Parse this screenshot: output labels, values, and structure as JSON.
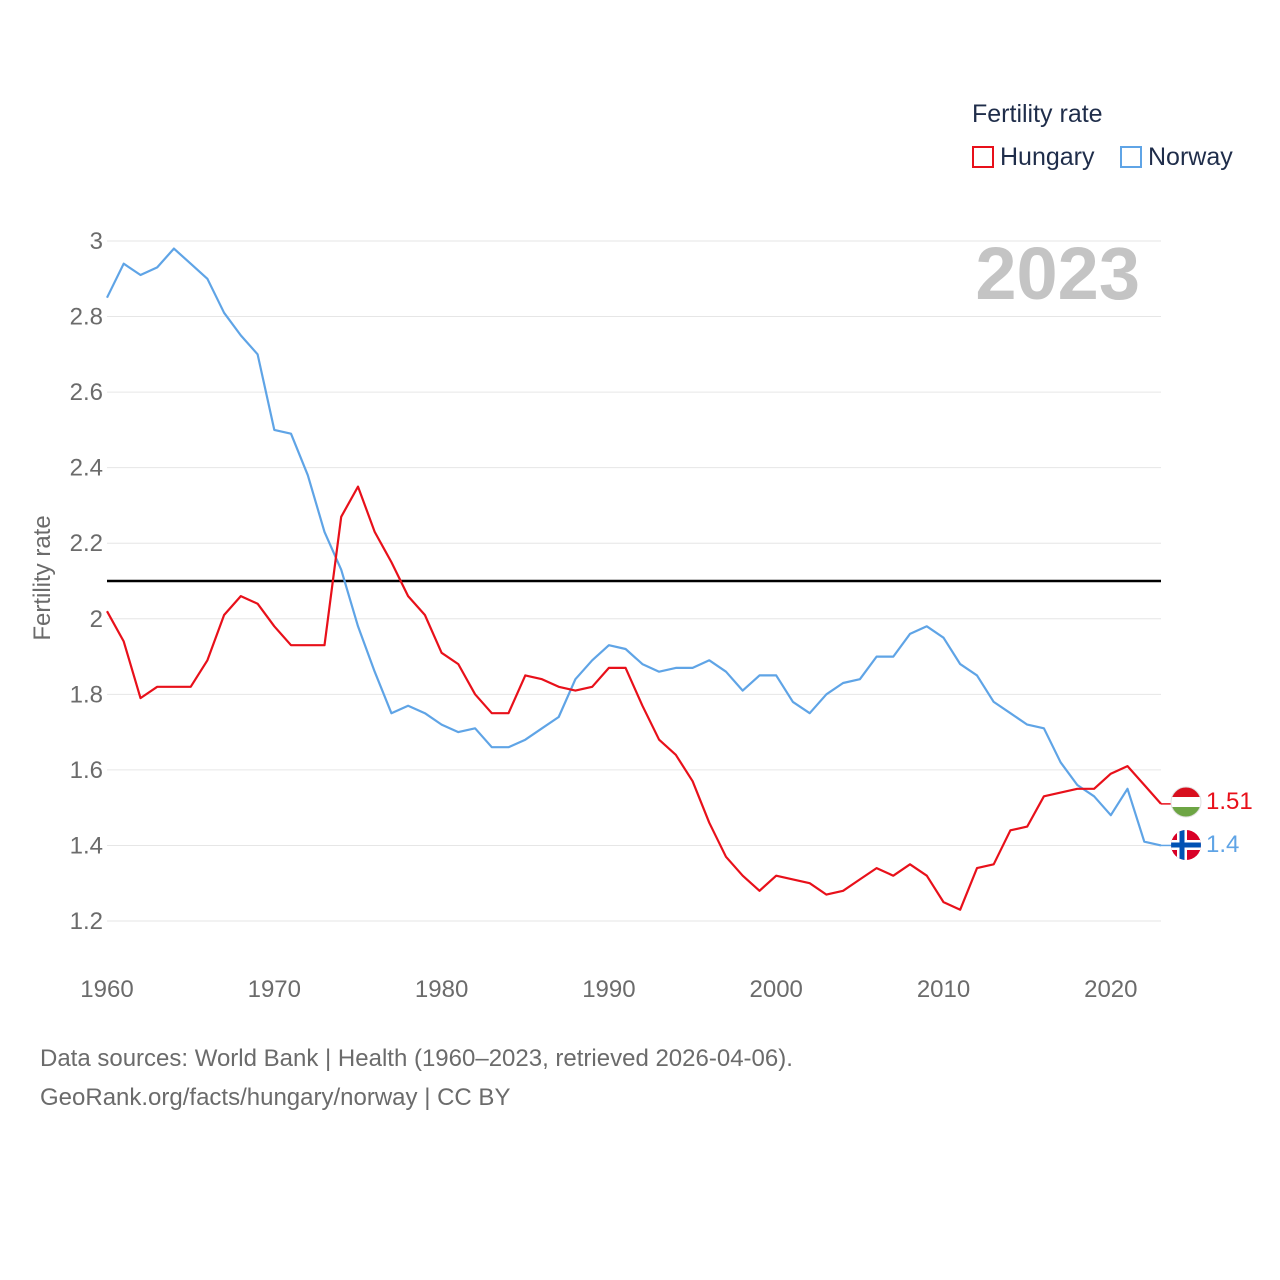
{
  "chart_data": {
    "type": "line",
    "legend_title": "Fertility rate",
    "ylabel": "Fertility rate",
    "xlabel": "",
    "ylim": [
      1.2,
      3.0
    ],
    "xlim": [
      1960,
      2023
    ],
    "yticks": [
      1.2,
      1.4,
      1.6,
      1.8,
      2.0,
      2.2,
      2.4,
      2.6,
      2.8,
      3.0
    ],
    "ytick_labels": [
      "1.2",
      "1.4",
      "1.6",
      "1.8",
      "2",
      "2.2",
      "2.4",
      "2.6",
      "2.8",
      "3"
    ],
    "xticks": [
      1960,
      1970,
      1980,
      1990,
      2000,
      2010,
      2020
    ],
    "xtick_labels": [
      "1960",
      "1970",
      "1980",
      "1990",
      "2000",
      "2010",
      "2020"
    ],
    "year_label": "2023",
    "reference_line": 2.1,
    "x": [
      1960,
      1961,
      1962,
      1963,
      1964,
      1965,
      1966,
      1967,
      1968,
      1969,
      1970,
      1971,
      1972,
      1973,
      1974,
      1975,
      1976,
      1977,
      1978,
      1979,
      1980,
      1981,
      1982,
      1983,
      1984,
      1985,
      1986,
      1987,
      1988,
      1989,
      1990,
      1991,
      1992,
      1993,
      1994,
      1995,
      1996,
      1997,
      1998,
      1999,
      2000,
      2001,
      2002,
      2003,
      2004,
      2005,
      2006,
      2007,
      2008,
      2009,
      2010,
      2011,
      2012,
      2013,
      2014,
      2015,
      2016,
      2017,
      2018,
      2019,
      2020,
      2021,
      2022,
      2023
    ],
    "series": [
      {
        "name": "Hungary",
        "color": "#e8101a",
        "end_label": "1.51",
        "values": [
          2.02,
          1.94,
          1.79,
          1.82,
          1.82,
          1.82,
          1.89,
          2.01,
          2.06,
          2.04,
          1.98,
          1.93,
          1.93,
          1.93,
          2.27,
          2.35,
          2.23,
          2.15,
          2.06,
          2.01,
          1.91,
          1.88,
          1.8,
          1.75,
          1.75,
          1.85,
          1.84,
          1.82,
          1.81,
          1.82,
          1.87,
          1.87,
          1.77,
          1.68,
          1.64,
          1.57,
          1.46,
          1.37,
          1.32,
          1.28,
          1.32,
          1.31,
          1.3,
          1.27,
          1.28,
          1.31,
          1.34,
          1.32,
          1.35,
          1.32,
          1.25,
          1.23,
          1.34,
          1.35,
          1.44,
          1.45,
          1.53,
          1.54,
          1.55,
          1.55,
          1.59,
          1.61,
          1.56,
          1.51
        ]
      },
      {
        "name": "Norway",
        "color": "#5fa4e6",
        "end_label": "1.4",
        "values": [
          2.85,
          2.94,
          2.91,
          2.93,
          2.98,
          2.94,
          2.9,
          2.81,
          2.75,
          2.7,
          2.5,
          2.49,
          2.38,
          2.23,
          2.13,
          1.98,
          1.86,
          1.75,
          1.77,
          1.75,
          1.72,
          1.7,
          1.71,
          1.66,
          1.66,
          1.68,
          1.71,
          1.74,
          1.84,
          1.89,
          1.93,
          1.92,
          1.88,
          1.86,
          1.87,
          1.87,
          1.89,
          1.86,
          1.81,
          1.85,
          1.85,
          1.78,
          1.75,
          1.8,
          1.83,
          1.84,
          1.9,
          1.9,
          1.96,
          1.98,
          1.95,
          1.88,
          1.85,
          1.78,
          1.75,
          1.72,
          1.71,
          1.62,
          1.56,
          1.53,
          1.48,
          1.55,
          1.41,
          1.4
        ]
      }
    ]
  },
  "legend": {
    "title": "Fertility rate",
    "items": [
      {
        "label": "Hungary",
        "color": "#e8101a"
      },
      {
        "label": "Norway",
        "color": "#5fa4e6"
      }
    ]
  },
  "footer": {
    "line1": "Data sources: World Bank | Health (1960–2023, retrieved 2026-04-06).",
    "line2": "GeoRank.org/facts/hungary/norway | CC BY"
  }
}
